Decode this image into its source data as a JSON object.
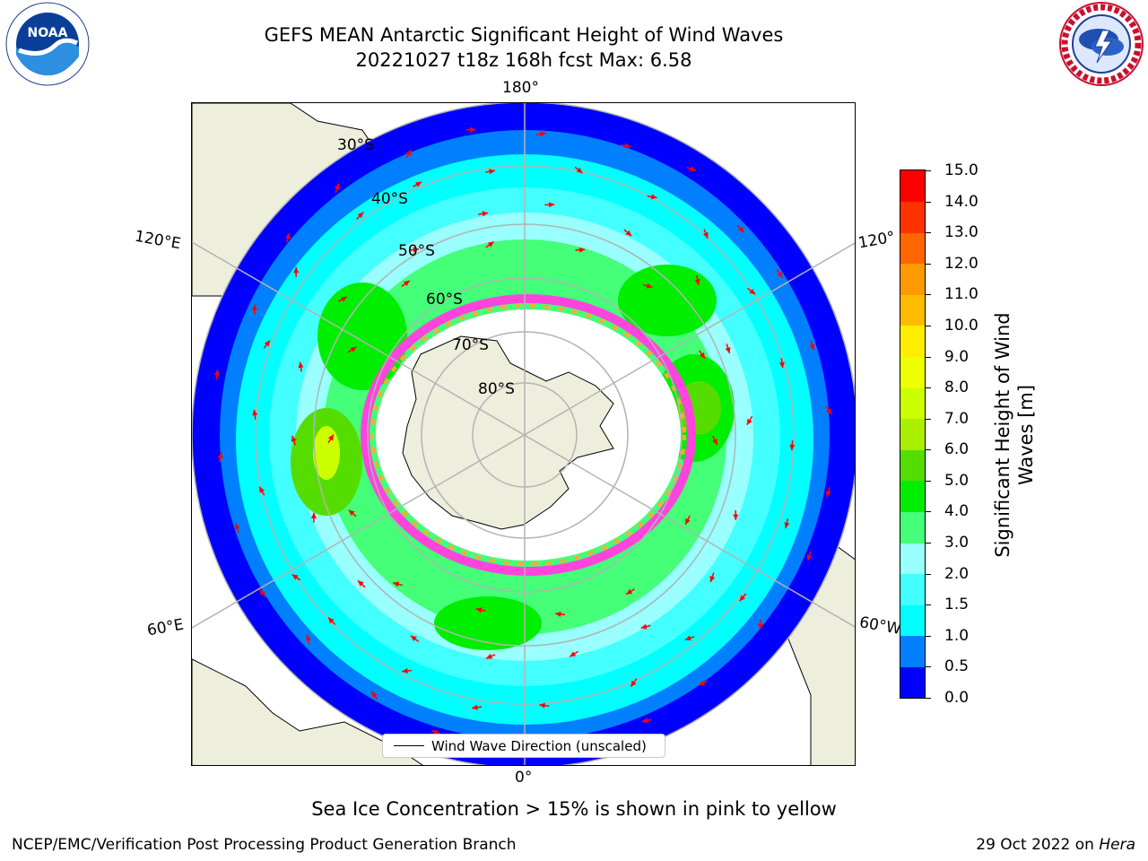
{
  "title": {
    "line1": "GEFS MEAN Antarctic Significant Height of Wind Waves",
    "line2": "20221027 t18z 168h fcst   Max: 6.58"
  },
  "logos": {
    "left": "noaa-logo",
    "right": "national-weather-service-logo"
  },
  "map": {
    "projection": "south-polar-stereographic",
    "land_color": "#eeeedd",
    "gridline_color": "#b3b3b3",
    "lon_labels": {
      "top": "180°",
      "bottom": "0°",
      "left_upper": "120°E",
      "left_lower": "60°E",
      "right_upper": "120°",
      "right_lower": "60°W"
    },
    "lat_labels": [
      "30°S",
      "40°S",
      "50°S",
      "60°S",
      "70°S",
      "80°S"
    ],
    "arrow_color": "#ff0000",
    "sea_ice_colors": [
      "#ff44dd",
      "#ffaa33"
    ]
  },
  "legend": {
    "label": "Wind Wave Direction (unscaled)"
  },
  "colorbar": {
    "title_line1": "Significant Height of Wind",
    "title_line2": "Waves [m]",
    "levels": [
      0.0,
      0.5,
      1.0,
      1.5,
      2.0,
      3.0,
      4.0,
      5.0,
      6.0,
      7.0,
      8.0,
      9.0,
      10.0,
      11.0,
      12.0,
      13.0,
      14.0,
      15.0
    ],
    "tick_labels": [
      "0.0",
      "0.5",
      "1.0",
      "1.5",
      "2.0",
      "3.0",
      "4.0",
      "5.0",
      "6.0",
      "7.0",
      "8.0",
      "9.0",
      "10.0",
      "11.0",
      "12.0",
      "13.0",
      "14.0",
      "15.0"
    ],
    "colors": [
      "#0000ff",
      "#0080ff",
      "#00ffff",
      "#44ffff",
      "#99ffff",
      "#44ff77",
      "#00ee00",
      "#55dd00",
      "#aaee00",
      "#ccff00",
      "#eeff00",
      "#ffee00",
      "#ffbb00",
      "#ff9900",
      "#ff6600",
      "#ff3300",
      "#ff0000"
    ]
  },
  "caption": "Sea Ice Concentration > 15% is shown in pink to yellow",
  "footer": {
    "credit": "NCEP/EMC/Verification Post Processing Product Generation Branch",
    "date": "29 Oct 2022 on ",
    "machine": "Hera"
  }
}
